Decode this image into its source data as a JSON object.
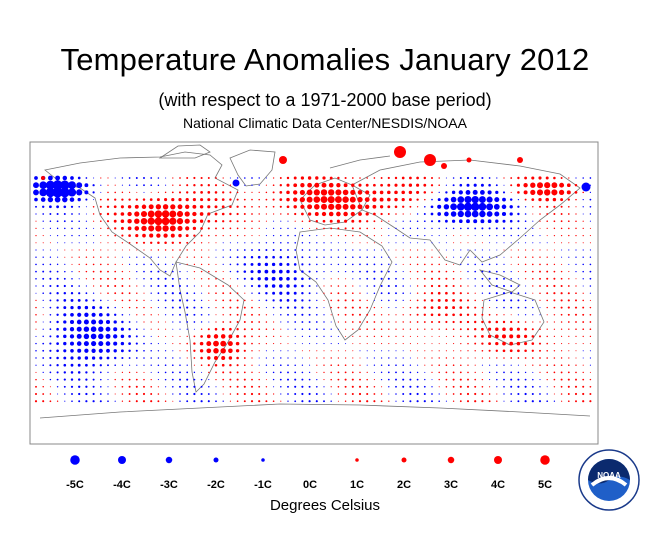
{
  "header": {
    "title": "Temperature Anomalies January 2012",
    "subtitle": "(with respect to a 1971-2000 base period)",
    "source": "National Climatic Data Center/NESDIS/NOAA"
  },
  "colors": {
    "warm": "#ff0000",
    "cold": "#0000ff",
    "land_outline": "#777777",
    "frame": "#888888"
  },
  "legend": {
    "units": "Degrees Celsius",
    "items": [
      {
        "label": "-5C",
        "value": -5
      },
      {
        "label": "-4C",
        "value": -4
      },
      {
        "label": "-3C",
        "value": -3
      },
      {
        "label": "-2C",
        "value": -2
      },
      {
        "label": "-1C",
        "value": -1
      },
      {
        "label": "0C",
        "value": 0
      },
      {
        "label": "1C",
        "value": 1
      },
      {
        "label": "2C",
        "value": 2
      },
      {
        "label": "3C",
        "value": 3
      },
      {
        "label": "4C",
        "value": 4
      },
      {
        "label": "5C",
        "value": 5
      }
    ]
  },
  "logo": {
    "text": "NOAA",
    "icon": "noaa-seal-icon"
  }
}
